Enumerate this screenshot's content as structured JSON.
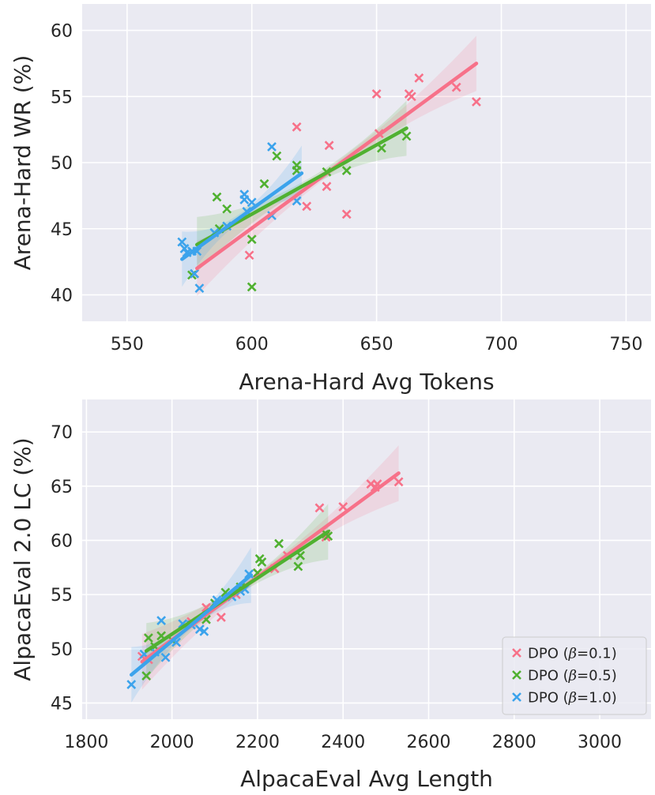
{
  "chart_data": [
    {
      "type": "scatter",
      "xlabel": "Arena-Hard Avg Tokens",
      "ylabel": "Arena-Hard WR (%)",
      "xlim": [
        532,
        760
      ],
      "ylim": [
        38,
        62
      ],
      "xticks": [
        550,
        600,
        650,
        700,
        750
      ],
      "yticks": [
        40,
        45,
        50,
        55,
        60
      ],
      "series": [
        {
          "name": "DPO (β=0.1)",
          "color": "#f77189",
          "x": [
            577,
            599,
            618,
            622,
            630,
            631,
            638,
            650,
            651,
            663,
            664,
            667,
            682,
            690
          ],
          "y": [
            41.6,
            43.0,
            52.7,
            46.7,
            48.2,
            51.3,
            46.1,
            55.2,
            52.2,
            55.2,
            55.0,
            56.4,
            55.7,
            54.6
          ],
          "fit": [
            [
              578,
              42.0
            ],
            [
              690,
              57.5
            ]
          ]
        },
        {
          "name": "DPO (β=0.5)",
          "color": "#50b131",
          "x": [
            576,
            586,
            587,
            590,
            600,
            600,
            605,
            610,
            618,
            618,
            630,
            638,
            652,
            662
          ],
          "y": [
            41.5,
            47.4,
            45.0,
            46.5,
            44.2,
            40.6,
            48.4,
            50.5,
            49.8,
            49.4,
            49.3,
            49.4,
            51.1,
            52.0
          ],
          "fit": [
            [
              578,
              43.8
            ],
            [
              662,
              52.6
            ]
          ]
        },
        {
          "name": "DPO (β=1.0)",
          "color": "#3ba3ec",
          "x": [
            572,
            573,
            574,
            576,
            577,
            578,
            579,
            585,
            590,
            597,
            597,
            598,
            600,
            608,
            608,
            618
          ],
          "y": [
            44.0,
            43.5,
            43.2,
            43.3,
            41.6,
            43.3,
            40.5,
            44.7,
            45.2,
            47.6,
            47.2,
            46.3,
            47.0,
            51.2,
            46.0,
            47.1
          ],
          "fit": [
            [
              572,
              42.7
            ],
            [
              620,
              49.2
            ]
          ]
        }
      ]
    },
    {
      "type": "scatter",
      "xlabel": "AlpacaEval Avg Length",
      "ylabel": "AlpacaEval 2.0 LC (%)",
      "xlim": [
        1790,
        3120
      ],
      "ylim": [
        43.5,
        73
      ],
      "xticks": [
        1800,
        2000,
        2200,
        2400,
        2600,
        2800,
        3000
      ],
      "yticks": [
        45,
        50,
        55,
        60,
        65,
        70
      ],
      "legend": "lower-right",
      "series": [
        {
          "name": "DPO (β=0.1)",
          "color": "#f77189",
          "x": [
            1930,
            1945,
            2045,
            2080,
            2115,
            2150,
            2200,
            2240,
            2270,
            2345,
            2360,
            2400,
            2465,
            2475,
            2480,
            2530
          ],
          "y": [
            49.3,
            49.0,
            52.5,
            53.8,
            52.9,
            55.0,
            57.0,
            57.4,
            58.6,
            63.0,
            60.3,
            63.1,
            65.2,
            64.9,
            65.2,
            65.4
          ],
          "fit": [
            [
              1930,
              48.8
            ],
            [
              2530,
              66.2
            ]
          ]
        },
        {
          "name": "DPO (β=0.5)",
          "color": "#50b131",
          "x": [
            1940,
            1945,
            1960,
            1975,
            2000,
            2080,
            2100,
            2125,
            2160,
            2200,
            2205,
            2210,
            2250,
            2295,
            2300,
            2360,
            2365
          ],
          "y": [
            47.5,
            51.0,
            50.2,
            51.2,
            50.8,
            52.7,
            54.2,
            55.2,
            55.7,
            57.0,
            58.3,
            58.0,
            59.7,
            57.6,
            58.6,
            60.6,
            60.4
          ],
          "fit": [
            [
              1940,
              49.8
            ],
            [
              2365,
              60.8
            ]
          ]
        },
        {
          "name": "DPO (β=1.0)",
          "color": "#3ba3ec",
          "x": [
            1905,
            1935,
            1960,
            1975,
            1985,
            2010,
            2025,
            2045,
            2065,
            2075,
            2105,
            2140,
            2160,
            2170,
            2180
          ],
          "y": [
            46.7,
            49.5,
            49.7,
            52.6,
            49.2,
            50.6,
            52.3,
            52.2,
            51.8,
            51.6,
            54.5,
            54.8,
            55.3,
            55.5,
            56.9
          ],
          "fit": [
            [
              1905,
              47.6
            ],
            [
              2185,
              56.8
            ]
          ]
        }
      ]
    }
  ]
}
